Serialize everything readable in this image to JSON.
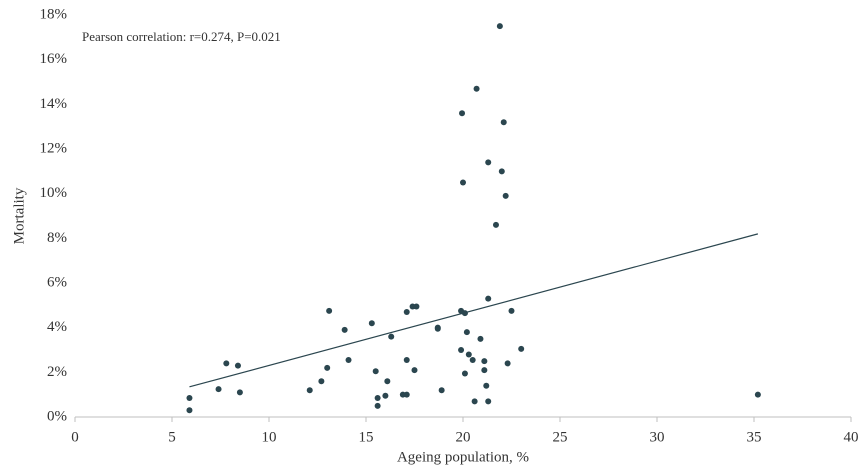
{
  "chart_data": {
    "type": "scatter",
    "annotation": "Pearson correlation: r=0.274, P=0.021",
    "xlabel": "Ageing population, %",
    "ylabel": "Mortality",
    "color": "#2b464f",
    "grid": false,
    "xlim": [
      0,
      40
    ],
    "xticks": [
      0,
      5,
      10,
      15,
      20,
      25,
      30,
      35,
      40
    ],
    "ylim": [
      0,
      18
    ],
    "yticks": [
      {
        "value": 0,
        "label": "0%"
      },
      {
        "value": 2,
        "label": "2%"
      },
      {
        "value": 4,
        "label": "4%"
      },
      {
        "value": 6,
        "label": "6%"
      },
      {
        "value": 8,
        "label": "8%"
      },
      {
        "value": 10,
        "label": "10%"
      },
      {
        "value": 12,
        "label": "12%"
      },
      {
        "value": 14,
        "label": "14%"
      },
      {
        "value": 16,
        "label": "16%"
      },
      {
        "value": 18,
        "label": "18%"
      }
    ],
    "x": [
      21.9,
      20.7,
      19.95,
      22.1,
      21.3,
      22.0,
      20.0,
      22.2,
      21.7,
      5.9,
      5.9,
      7.4,
      7.8,
      8.4,
      8.5,
      12.1,
      12.7,
      13.0,
      13.1,
      13.9,
      14.1,
      15.3,
      15.5,
      15.6,
      15.6,
      16.1,
      16.0,
      16.3,
      16.9,
      17.1,
      17.1,
      17.1,
      17.4,
      17.6,
      17.5,
      18.7,
      18.7,
      18.9,
      19.9,
      19.9,
      20.1,
      20.1,
      20.2,
      20.3,
      20.5,
      20.6,
      20.9,
      21.1,
      21.1,
      21.2,
      21.3,
      21.3,
      22.3,
      22.5,
      23.0,
      35.2
    ],
    "values": [
      17.5,
      14.7,
      13.6,
      13.2,
      11.4,
      11.0,
      10.5,
      9.9,
      8.6,
      0.85,
      0.3,
      1.25,
      2.4,
      2.3,
      1.1,
      1.2,
      1.6,
      2.2,
      4.75,
      3.9,
      2.55,
      4.2,
      2.05,
      0.5,
      0.85,
      1.6,
      0.95,
      3.6,
      1.0,
      1.0,
      2.55,
      4.7,
      4.95,
      4.95,
      2.1,
      4.0,
      3.95,
      1.2,
      3.0,
      4.75,
      4.65,
      1.95,
      3.8,
      2.8,
      2.55,
      0.7,
      3.5,
      2.5,
      2.1,
      1.4,
      0.7,
      5.3,
      2.4,
      4.75,
      3.05,
      1.0
    ],
    "trendline": {
      "x": [
        5.9,
        35.2
      ],
      "values": [
        1.35,
        8.2
      ]
    }
  }
}
